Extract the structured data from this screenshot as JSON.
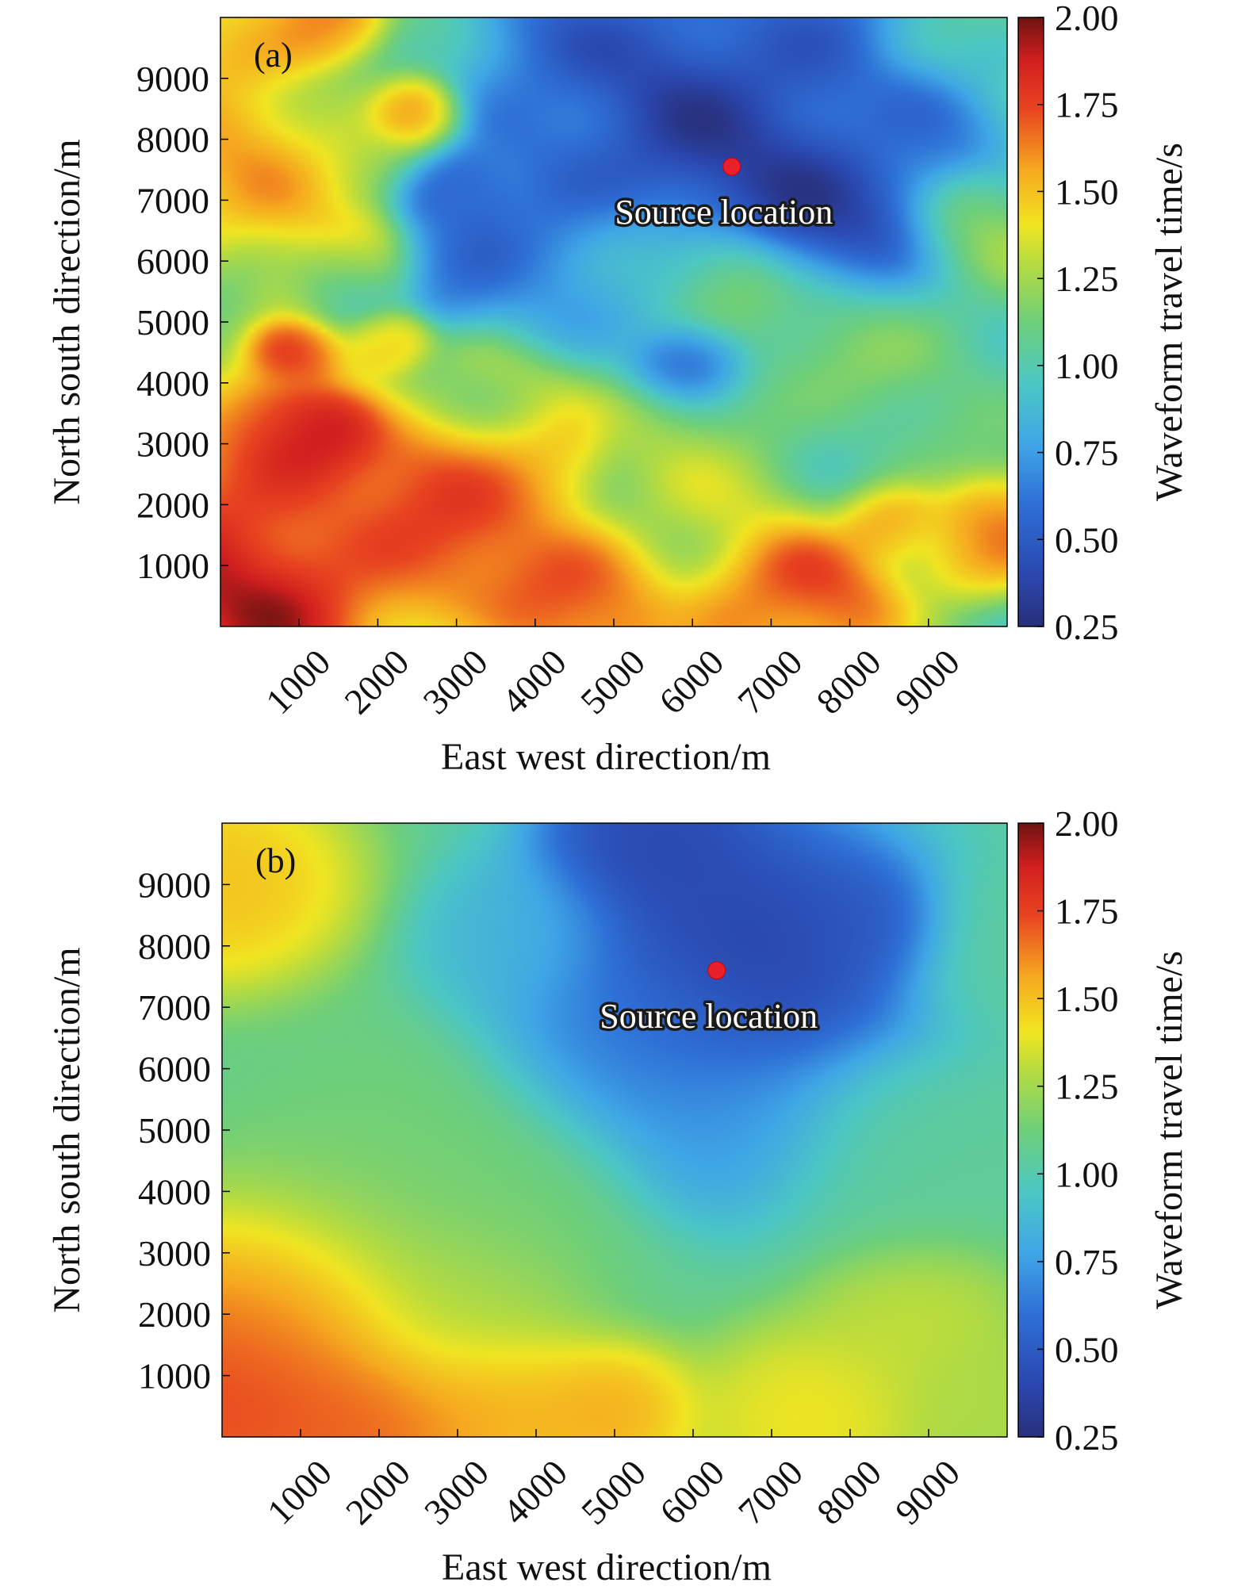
{
  "chart_data": [
    {
      "type": "heatmap",
      "panel_label": "(a)",
      "xlabel": "East west direction/m",
      "ylabel": "North south direction/m",
      "colorbar_label": "Waveform travel time/s",
      "x_ticks": [
        1000,
        2000,
        3000,
        4000,
        5000,
        6000,
        7000,
        8000,
        9000
      ],
      "y_ticks": [
        1000,
        2000,
        3000,
        4000,
        5000,
        6000,
        7000,
        8000,
        9000
      ],
      "colorbar_ticks": [
        "2.00",
        "1.75",
        "1.50",
        "1.25",
        "1.00",
        "0.75",
        "0.50",
        "0.25"
      ],
      "xlim": [
        0,
        10000
      ],
      "ylim": [
        0,
        10000
      ],
      "zlim": [
        0.25,
        2.0
      ],
      "annotation": {
        "text": "Source location",
        "x": 6500,
        "y": 7550
      },
      "field_blobs": [
        {
          "x": 200,
          "y": 500,
          "value": 2.0,
          "spread": 900
        },
        {
          "x": 1000,
          "y": 3000,
          "value": 2.0,
          "spread": 500
        },
        {
          "x": 700,
          "y": 2200,
          "value": 1.8,
          "spread": 900
        },
        {
          "x": 2500,
          "y": 1500,
          "value": 1.8,
          "spread": 800
        },
        {
          "x": 3200,
          "y": 2300,
          "value": 1.75,
          "spread": 600
        },
        {
          "x": 4000,
          "y": 2700,
          "value": 1.65,
          "spread": 500
        },
        {
          "x": 4500,
          "y": 500,
          "value": 1.75,
          "spread": 700
        },
        {
          "x": 7200,
          "y": 500,
          "value": 1.8,
          "spread": 700
        },
        {
          "x": 8500,
          "y": 1800,
          "value": 1.75,
          "spread": 350
        },
        {
          "x": 9700,
          "y": 1500,
          "value": 1.7,
          "spread": 500
        },
        {
          "x": 300,
          "y": 7500,
          "value": 1.65,
          "spread": 700
        },
        {
          "x": 300,
          "y": 9700,
          "value": 1.55,
          "spread": 600
        },
        {
          "x": 1200,
          "y": 9900,
          "value": 1.75,
          "spread": 400
        },
        {
          "x": 2400,
          "y": 8400,
          "value": 1.7,
          "spread": 300
        },
        {
          "x": 1500,
          "y": 5900,
          "value": 1.6,
          "spread": 500
        },
        {
          "x": 1000,
          "y": 4500,
          "value": 1.75,
          "spread": 300
        },
        {
          "x": 2100,
          "y": 4700,
          "value": 1.65,
          "spread": 300
        },
        {
          "x": 6300,
          "y": 8100,
          "value": 0.3,
          "spread": 1400
        },
        {
          "x": 8000,
          "y": 6700,
          "value": 0.3,
          "spread": 700
        },
        {
          "x": 4500,
          "y": 5600,
          "value": 0.4,
          "spread": 700
        },
        {
          "x": 3000,
          "y": 7000,
          "value": 0.5,
          "spread": 400
        },
        {
          "x": 3000,
          "y": 5900,
          "value": 0.5,
          "spread": 450
        },
        {
          "x": 5900,
          "y": 4300,
          "value": 0.4,
          "spread": 400
        },
        {
          "x": 8800,
          "y": 8300,
          "value": 0.6,
          "spread": 500
        },
        {
          "x": 4500,
          "y": 9200,
          "value": 0.55,
          "spread": 600
        },
        {
          "x": 1700,
          "y": 5700,
          "value": 0.7,
          "spread": 400
        },
        {
          "x": 5000,
          "y": 5600,
          "value": 1.3,
          "spread": 700
        },
        {
          "x": 6400,
          "y": 5700,
          "value": 1.25,
          "spread": 500
        },
        {
          "x": 6000,
          "y": 3200,
          "value": 1.2,
          "spread": 700
        },
        {
          "x": 8000,
          "y": 4800,
          "value": 1.15,
          "spread": 900
        },
        {
          "x": 9500,
          "y": 6500,
          "value": 1.2,
          "spread": 500
        },
        {
          "x": 1500,
          "y": 8000,
          "value": 1.3,
          "spread": 600
        },
        {
          "x": 9600,
          "y": 9500,
          "value": 1.0,
          "spread": 600
        },
        {
          "x": 6200,
          "y": 2000,
          "value": 1.3,
          "spread": 700
        },
        {
          "x": 3600,
          "y": 3700,
          "value": 1.3,
          "spread": 600
        },
        {
          "x": 8300,
          "y": 3000,
          "value": 1.05,
          "spread": 700
        }
      ]
    },
    {
      "type": "heatmap",
      "panel_label": "(b)",
      "xlabel": "East west direction/m",
      "ylabel": "North south direction/m",
      "colorbar_label": "Waveform travel time/s",
      "x_ticks": [
        1000,
        2000,
        3000,
        4000,
        5000,
        6000,
        7000,
        8000,
        9000
      ],
      "y_ticks": [
        1000,
        2000,
        3000,
        4000,
        5000,
        6000,
        7000,
        8000,
        9000
      ],
      "colorbar_ticks": [
        "2.00",
        "1.75",
        "1.50",
        "1.25",
        "1.00",
        "0.75",
        "0.50",
        "0.25"
      ],
      "xlim": [
        0,
        10000
      ],
      "ylim": [
        0,
        10000
      ],
      "zlim": [
        0.25,
        2.0
      ],
      "annotation": {
        "text": "Source location",
        "x": 6300,
        "y": 7600
      },
      "field_blobs": [
        {
          "x": 6500,
          "y": 7800,
          "value": 0.3,
          "spread": 1300
        },
        {
          "x": 5500,
          "y": 9800,
          "value": 0.35,
          "spread": 700
        },
        {
          "x": 8300,
          "y": 8300,
          "value": 0.45,
          "spread": 500
        },
        {
          "x": 5200,
          "y": 6500,
          "value": 0.65,
          "spread": 900
        },
        {
          "x": 6500,
          "y": 5000,
          "value": 0.7,
          "spread": 800
        },
        {
          "x": 3800,
          "y": 8000,
          "value": 0.85,
          "spread": 700
        },
        {
          "x": 100,
          "y": 800,
          "value": 1.85,
          "spread": 1100
        },
        {
          "x": 800,
          "y": 2000,
          "value": 1.65,
          "spread": 1100
        },
        {
          "x": 2000,
          "y": 300,
          "value": 1.75,
          "spread": 800
        },
        {
          "x": 3500,
          "y": 600,
          "value": 1.6,
          "spread": 700
        },
        {
          "x": 4900,
          "y": 400,
          "value": 1.6,
          "spread": 600
        },
        {
          "x": 0,
          "y": 9000,
          "value": 1.55,
          "spread": 900
        },
        {
          "x": 7500,
          "y": 300,
          "value": 1.45,
          "spread": 800
        },
        {
          "x": 8800,
          "y": 2000,
          "value": 1.35,
          "spread": 700
        },
        {
          "x": 9900,
          "y": 300,
          "value": 1.3,
          "spread": 800
        },
        {
          "x": 2500,
          "y": 4000,
          "value": 1.15,
          "spread": 1500
        },
        {
          "x": 3000,
          "y": 2000,
          "value": 1.3,
          "spread": 800
        },
        {
          "x": 8500,
          "y": 4500,
          "value": 1.05,
          "spread": 1000
        },
        {
          "x": 9800,
          "y": 8000,
          "value": 1.05,
          "spread": 700
        }
      ]
    }
  ]
}
